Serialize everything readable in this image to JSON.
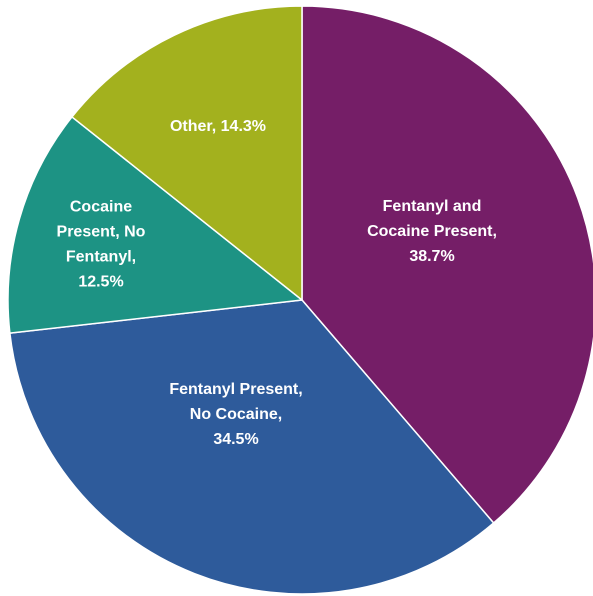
{
  "chart_data": {
    "type": "pie",
    "title": "",
    "start_angle_deg": 0,
    "direction": "clockwise",
    "slices": [
      {
        "name": "Fentanyl and Cocaine Present",
        "value": 38.7,
        "color": "#751e67",
        "label_lines": [
          "Fentanyl and",
          "Cocaine Present,",
          "38.7%"
        ]
      },
      {
        "name": "Fentanyl Present, No Cocaine",
        "value": 34.5,
        "color": "#2e5b9b",
        "label_lines": [
          "Fentanyl Present,",
          "No Cocaine,",
          "34.5%"
        ]
      },
      {
        "name": "Cocaine Present, No Fentanyl",
        "value": 12.5,
        "color": "#1d9384",
        "label_lines": [
          "Cocaine",
          "Present, No",
          "Fentanyl,",
          "12.5%"
        ]
      },
      {
        "name": "Other",
        "value": 14.3,
        "color": "#a3b11e",
        "label_lines": [
          "Other, 14.3%"
        ]
      }
    ]
  }
}
